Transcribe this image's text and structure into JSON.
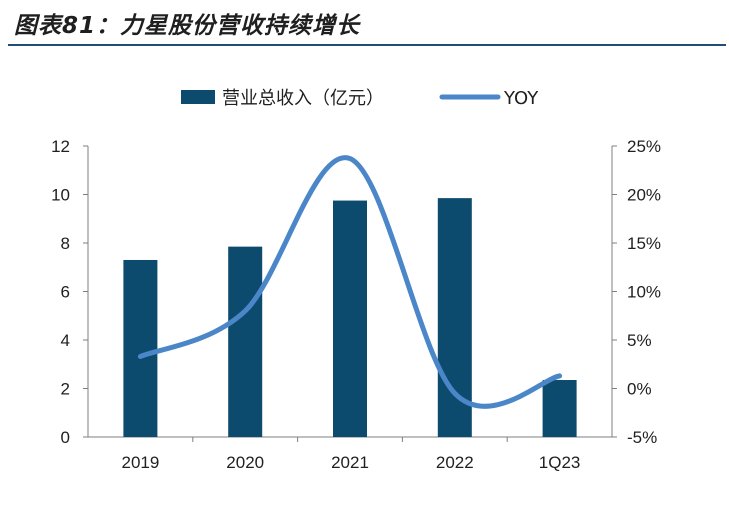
{
  "title": "图表81：力星股份营收持续增长",
  "chart_data": {
    "type": "bar",
    "categories": [
      "2019",
      "2020",
      "2021",
      "2022",
      "1Q23"
    ],
    "series": [
      {
        "name": "营业总收入（亿元）",
        "type": "bar",
        "axis": "left",
        "values": [
          7.3,
          7.85,
          9.75,
          9.85,
          2.35
        ],
        "color": "#0c4a6e"
      },
      {
        "name": "YOY",
        "type": "line",
        "axis": "right",
        "values": [
          3.3,
          8.0,
          23.7,
          -0.5,
          1.3
        ],
        "color": "#4a86c8"
      }
    ],
    "ylim": [
      0,
      12
    ],
    "y_ticks": [
      "0",
      "2",
      "4",
      "6",
      "8",
      "10",
      "12"
    ],
    "y2lim": [
      -5,
      25
    ],
    "y2_ticks": [
      "-5%",
      "0%",
      "5%",
      "10%",
      "15%",
      "20%",
      "25%"
    ],
    "legend_position": "top-center",
    "grid": false
  }
}
